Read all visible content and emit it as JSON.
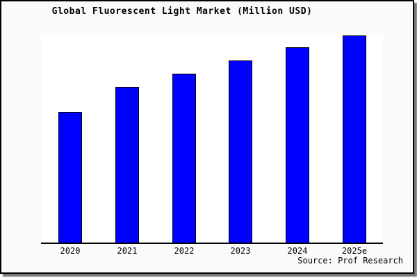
{
  "chart_data": {
    "type": "bar",
    "title": "Global Fluorescent Light Market (Million USD)",
    "categories": [
      "2020",
      "2021",
      "2022",
      "2023",
      "2024",
      "2025e"
    ],
    "values": [
      189,
      226,
      245,
      264,
      283,
      300
    ],
    "value_units": "relative (y-axis has no tick labels in source image)",
    "xlabel": "",
    "ylabel": "",
    "ylim": [
      0,
      300
    ],
    "grid": false,
    "legend": "none",
    "y_axis_ticks": "none",
    "bar_color": "#0000ff",
    "bar_border_color": "#000000",
    "source_note": "Source: Prof Research"
  },
  "frame": {
    "background_color": "#fafafa",
    "plot_background_color": "#ffffff",
    "border_color": "#000000",
    "shadow_color": "#7a7a7a"
  }
}
